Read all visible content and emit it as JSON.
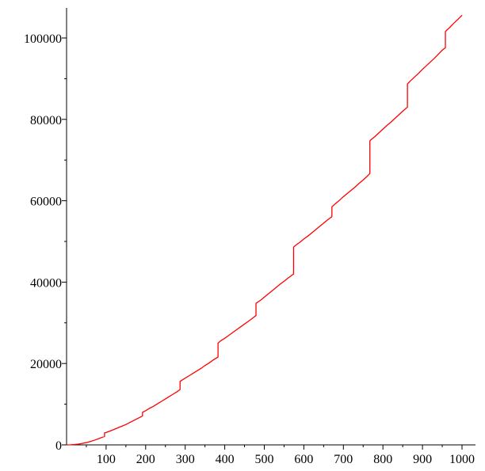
{
  "chart_data": {
    "type": "line",
    "title": "",
    "xlabel": "",
    "ylabel": "",
    "xlim": [
      0,
      1000
    ],
    "ylim": [
      0,
      107000
    ],
    "grid": false,
    "x_ticks": [
      {
        "value": 100,
        "label": "100"
      },
      {
        "value": 200,
        "label": "200"
      },
      {
        "value": 300,
        "label": "300"
      },
      {
        "value": 400,
        "label": "400"
      },
      {
        "value": 500,
        "label": "500"
      },
      {
        "value": 600,
        "label": "600"
      },
      {
        "value": 700,
        "label": "700"
      },
      {
        "value": 800,
        "label": "800"
      },
      {
        "value": 900,
        "label": "900"
      },
      {
        "value": 1000,
        "label": "1000"
      }
    ],
    "y_ticks": [
      {
        "value": 0,
        "label": "0"
      },
      {
        "value": 20000,
        "label": "20000"
      },
      {
        "value": 40000,
        "label": "40000"
      },
      {
        "value": 60000,
        "label": "60000"
      },
      {
        "value": 80000,
        "label": "80000"
      },
      {
        "value": 100000,
        "label": "100000"
      }
    ],
    "x_minor_step": 50,
    "y_minor_step": 10000,
    "series": [
      {
        "color": "#ff0000",
        "points": [
          [
            0,
            0
          ],
          [
            10,
            20
          ],
          [
            20,
            90
          ],
          [
            30,
            200
          ],
          [
            40,
            360
          ],
          [
            50,
            570
          ],
          [
            60,
            830
          ],
          [
            70,
            1130
          ],
          [
            80,
            1480
          ],
          [
            90,
            1860
          ],
          [
            96,
            2050
          ],
          [
            96,
            2950
          ],
          [
            100,
            3050
          ],
          [
            110,
            3400
          ],
          [
            120,
            3800
          ],
          [
            130,
            4200
          ],
          [
            140,
            4600
          ],
          [
            150,
            5000
          ],
          [
            160,
            5500
          ],
          [
            170,
            6000
          ],
          [
            180,
            6500
          ],
          [
            190,
            7000
          ],
          [
            192,
            7100
          ],
          [
            192,
            8000
          ],
          [
            200,
            8400
          ],
          [
            210,
            9000
          ],
          [
            220,
            9500
          ],
          [
            230,
            10100
          ],
          [
            240,
            10700
          ],
          [
            250,
            11300
          ],
          [
            260,
            11900
          ],
          [
            270,
            12500
          ],
          [
            280,
            13100
          ],
          [
            287,
            13600
          ],
          [
            287,
            15600
          ],
          [
            290,
            15800
          ],
          [
            300,
            16400
          ],
          [
            310,
            17000
          ],
          [
            320,
            17600
          ],
          [
            330,
            18200
          ],
          [
            340,
            18800
          ],
          [
            350,
            19500
          ],
          [
            360,
            20100
          ],
          [
            370,
            20800
          ],
          [
            383,
            21600
          ],
          [
            383,
            25000
          ],
          [
            390,
            25600
          ],
          [
            400,
            26200
          ],
          [
            410,
            26900
          ],
          [
            420,
            27600
          ],
          [
            430,
            28300
          ],
          [
            440,
            29000
          ],
          [
            450,
            29700
          ],
          [
            460,
            30400
          ],
          [
            470,
            31100
          ],
          [
            479,
            31800
          ],
          [
            479,
            34800
          ],
          [
            490,
            35500
          ],
          [
            500,
            36300
          ],
          [
            510,
            37100
          ],
          [
            520,
            37900
          ],
          [
            530,
            38700
          ],
          [
            540,
            39500
          ],
          [
            550,
            40200
          ],
          [
            560,
            41000
          ],
          [
            574,
            42000
          ],
          [
            574,
            48600
          ],
          [
            580,
            49100
          ],
          [
            590,
            49800
          ],
          [
            600,
            50600
          ],
          [
            610,
            51300
          ],
          [
            620,
            52100
          ],
          [
            630,
            52900
          ],
          [
            640,
            53700
          ],
          [
            650,
            54500
          ],
          [
            660,
            55300
          ],
          [
            670,
            56000
          ],
          [
            671,
            56200
          ],
          [
            671,
            58500
          ],
          [
            680,
            59300
          ],
          [
            690,
            60100
          ],
          [
            700,
            61000
          ],
          [
            710,
            61800
          ],
          [
            720,
            62600
          ],
          [
            730,
            63400
          ],
          [
            740,
            64300
          ],
          [
            750,
            65100
          ],
          [
            760,
            66000
          ],
          [
            767,
            66700
          ],
          [
            767,
            74700
          ],
          [
            770,
            75000
          ],
          [
            780,
            75800
          ],
          [
            790,
            76700
          ],
          [
            800,
            77600
          ],
          [
            810,
            78500
          ],
          [
            820,
            79300
          ],
          [
            830,
            80200
          ],
          [
            840,
            81100
          ],
          [
            850,
            82000
          ],
          [
            862,
            83000
          ],
          [
            862,
            88700
          ],
          [
            870,
            89500
          ],
          [
            880,
            90400
          ],
          [
            890,
            91300
          ],
          [
            900,
            92300
          ],
          [
            910,
            93200
          ],
          [
            920,
            94100
          ],
          [
            930,
            95000
          ],
          [
            940,
            96000
          ],
          [
            950,
            97000
          ],
          [
            958,
            97600
          ],
          [
            958,
            101600
          ],
          [
            970,
            102700
          ],
          [
            980,
            103700
          ],
          [
            990,
            104600
          ],
          [
            1000,
            105600
          ]
        ]
      }
    ]
  }
}
